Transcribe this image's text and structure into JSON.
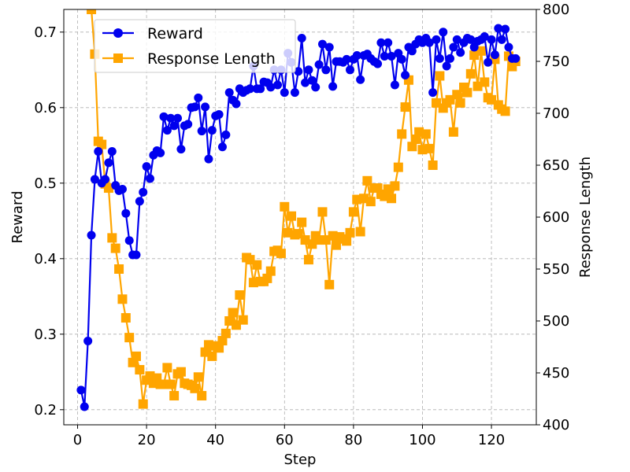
{
  "chart_data": {
    "type": "line",
    "xlabel": "Step",
    "ylabel_left": "Reward",
    "ylabel_right": "Response Length",
    "xlim": [
      -4,
      133
    ],
    "ylim_left": [
      0.18,
      0.73
    ],
    "ylim_right": [
      400,
      800
    ],
    "xticks": [
      0,
      20,
      40,
      60,
      80,
      100,
      120
    ],
    "yticks_left": [
      0.2,
      0.3,
      0.4,
      0.5,
      0.6,
      0.7
    ],
    "yticks_right": [
      400,
      450,
      500,
      550,
      600,
      650,
      700,
      750,
      800
    ],
    "grid": true,
    "legend_position": "top-left",
    "series": [
      {
        "name": "Reward",
        "axis": "left",
        "color": "#0000ee",
        "marker": "circle",
        "x": [
          1,
          2,
          3,
          4,
          5,
          6,
          7,
          8,
          9,
          10,
          11,
          12,
          13,
          14,
          15,
          16,
          17,
          18,
          19,
          20,
          21,
          22,
          23,
          24,
          25,
          26,
          27,
          28,
          29,
          30,
          31,
          32,
          33,
          34,
          35,
          36,
          37,
          38,
          39,
          40,
          41,
          42,
          43,
          44,
          45,
          46,
          47,
          48,
          49,
          50,
          51,
          52,
          53,
          54,
          55,
          56,
          57,
          58,
          59,
          60,
          61,
          62,
          63,
          64,
          65,
          66,
          67,
          68,
          69,
          70,
          71,
          72,
          73,
          74,
          75,
          76,
          77,
          78,
          79,
          80,
          81,
          82,
          83,
          84,
          85,
          86,
          87,
          88,
          89,
          90,
          91,
          92,
          93,
          94,
          95,
          96,
          97,
          98,
          99,
          100,
          101,
          102,
          103,
          104,
          105,
          106,
          107,
          108,
          109,
          110,
          111,
          112,
          113,
          114,
          115,
          116,
          117,
          118,
          119,
          120,
          121,
          122,
          123,
          124,
          125,
          126,
          127
        ],
        "values": [
          0.226,
          0.204,
          0.291,
          0.431,
          0.505,
          0.542,
          0.5,
          0.505,
          0.527,
          0.542,
          0.497,
          0.49,
          0.492,
          0.46,
          0.424,
          0.405,
          0.405,
          0.476,
          0.488,
          0.522,
          0.506,
          0.537,
          0.543,
          0.54,
          0.588,
          0.57,
          0.586,
          0.576,
          0.586,
          0.545,
          0.576,
          0.578,
          0.6,
          0.601,
          0.613,
          0.569,
          0.601,
          0.532,
          0.57,
          0.589,
          0.591,
          0.548,
          0.564,
          0.62,
          0.61,
          0.605,
          0.625,
          0.62,
          0.623,
          0.625,
          0.655,
          0.625,
          0.625,
          0.634,
          0.633,
          0.627,
          0.65,
          0.63,
          0.65,
          0.62,
          0.672,
          0.66,
          0.62,
          0.648,
          0.692,
          0.633,
          0.65,
          0.636,
          0.627,
          0.657,
          0.684,
          0.65,
          0.68,
          0.628,
          0.661,
          0.661,
          0.66,
          0.664,
          0.65,
          0.664,
          0.669,
          0.637,
          0.669,
          0.671,
          0.665,
          0.661,
          0.658,
          0.686,
          0.668,
          0.686,
          0.668,
          0.63,
          0.672,
          0.664,
          0.643,
          0.68,
          0.675,
          0.684,
          0.69,
          0.686,
          0.692,
          0.686,
          0.62,
          0.69,
          0.665,
          0.7,
          0.655,
          0.665,
          0.68,
          0.69,
          0.673,
          0.686,
          0.692,
          0.69,
          0.68,
          0.688,
          0.69,
          0.694,
          0.66,
          0.69,
          0.67,
          0.705,
          0.69,
          0.704,
          0.68,
          0.665,
          0.665
        ]
      },
      {
        "name": "Response Length",
        "axis": "right",
        "color": "#ffa500",
        "marker": "square",
        "x": [
          4,
          5,
          6,
          7,
          8,
          9,
          10,
          11,
          12,
          13,
          14,
          15,
          16,
          17,
          18,
          19,
          20,
          21,
          22,
          23,
          24,
          25,
          26,
          27,
          28,
          29,
          30,
          31,
          32,
          33,
          34,
          35,
          36,
          37,
          38,
          39,
          40,
          41,
          42,
          43,
          44,
          45,
          46,
          47,
          48,
          49,
          50,
          51,
          52,
          53,
          54,
          55,
          56,
          57,
          58,
          59,
          60,
          61,
          62,
          63,
          64,
          65,
          66,
          67,
          68,
          69,
          70,
          71,
          72,
          73,
          74,
          75,
          76,
          77,
          78,
          79,
          80,
          81,
          82,
          83,
          84,
          85,
          86,
          87,
          88,
          89,
          90,
          91,
          92,
          93,
          94,
          95,
          96,
          97,
          98,
          99,
          100,
          101,
          102,
          103,
          104,
          105,
          106,
          107,
          108,
          109,
          110,
          111,
          112,
          113,
          114,
          115,
          116,
          117,
          118,
          119,
          120,
          121,
          122,
          123,
          124,
          125,
          126,
          127
        ],
        "values": [
          800,
          757,
          673,
          670,
          632,
          628,
          580,
          570,
          550,
          521,
          503,
          484,
          460,
          466,
          453,
          420,
          443,
          447,
          440,
          445,
          439,
          439,
          455,
          439,
          428,
          449,
          451,
          440,
          439,
          438,
          435,
          446,
          428,
          470,
          477,
          466,
          476,
          474,
          481,
          488,
          500,
          508,
          496,
          525,
          501,
          561,
          559,
          537,
          554,
          538,
          538,
          541,
          548,
          567,
          568,
          565,
          610,
          585,
          601,
          583,
          584,
          595,
          578,
          559,
          574,
          582,
          578,
          605,
          578,
          535,
          582,
          573,
          581,
          579,
          577,
          585,
          605,
          617,
          586,
          618,
          635,
          615,
          628,
          628,
          622,
          620,
          627,
          618,
          630,
          648,
          680,
          706,
          732,
          668,
          675,
          682,
          665,
          680,
          666,
          650,
          710,
          736,
          705,
          710,
          713,
          682,
          718,
          710,
          725,
          720,
          738,
          756,
          726,
          760,
          730,
          715,
          713,
          752,
          708,
          704,
          702,
          755,
          745,
          750
        ]
      }
    ]
  }
}
